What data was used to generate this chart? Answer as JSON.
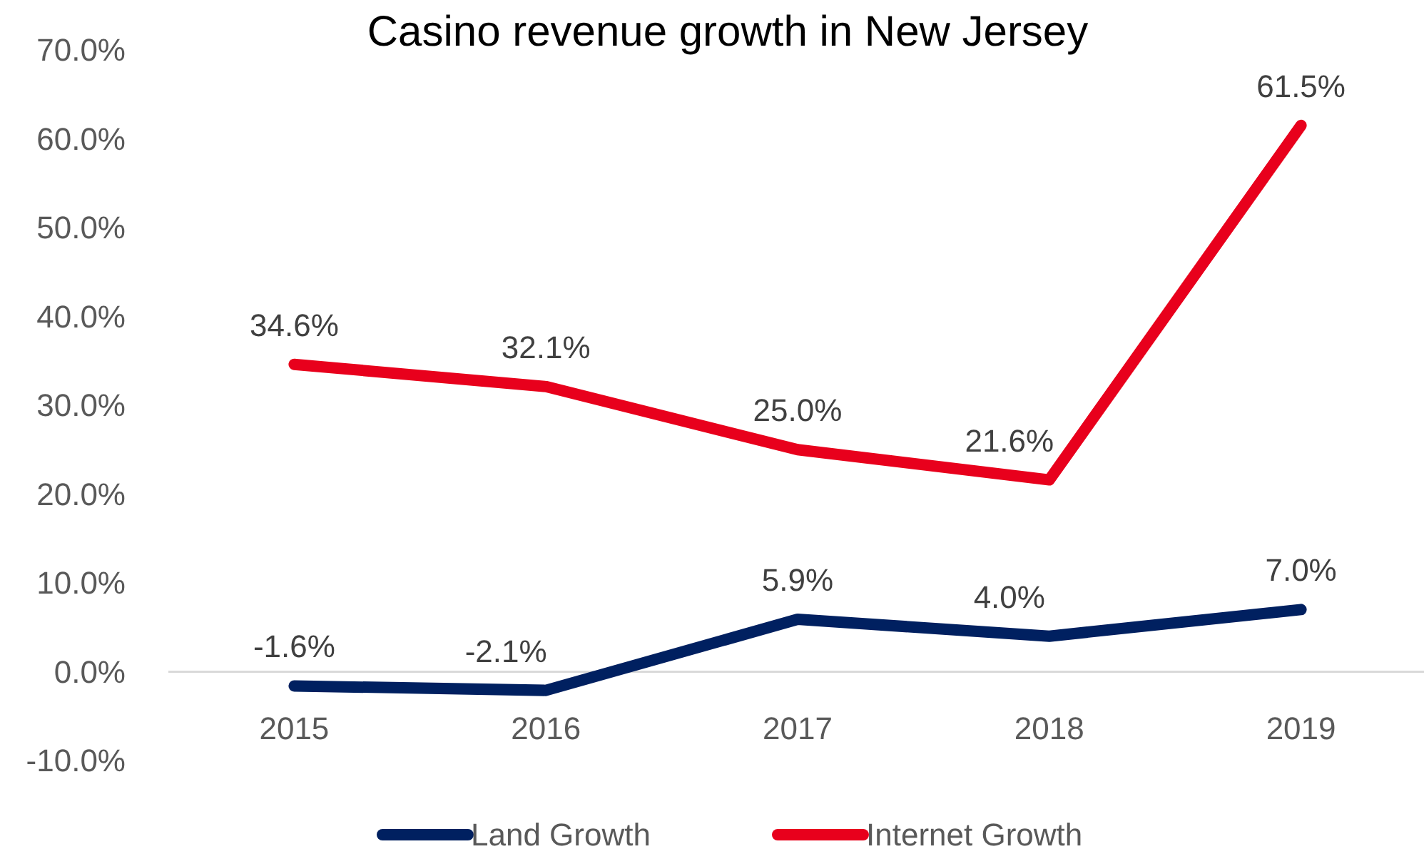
{
  "chart_data": {
    "type": "line",
    "title": "Casino revenue growth in New Jersey",
    "categories": [
      "2015",
      "2016",
      "2017",
      "2018",
      "2019"
    ],
    "series": [
      {
        "name": "Land Growth",
        "color": "#002060",
        "values": [
          -1.6,
          -2.1,
          5.9,
          4.0,
          7.0
        ],
        "value_labels": [
          "-1.6%",
          "-2.1%",
          "5.9%",
          "4.0%",
          "7.0%"
        ]
      },
      {
        "name": "Internet Growth",
        "color": "#e8001c",
        "values": [
          34.6,
          32.1,
          25.0,
          21.6,
          61.5
        ],
        "value_labels": [
          "34.6%",
          "32.1%",
          "25.0%",
          "21.6%",
          "61.5%"
        ]
      }
    ],
    "ylim": [
      -10,
      70
    ],
    "yticks": [
      {
        "value": -10,
        "label": "-10.0%"
      },
      {
        "value": 0,
        "label": "0.0%"
      },
      {
        "value": 10,
        "label": "10.0%"
      },
      {
        "value": 20,
        "label": "20.0%"
      },
      {
        "value": 30,
        "label": "30.0%"
      },
      {
        "value": 40,
        "label": "40.0%"
      },
      {
        "value": 50,
        "label": "50.0%"
      },
      {
        "value": 60,
        "label": "60.0%"
      },
      {
        "value": 70,
        "label": "70.0%"
      }
    ],
    "grid": false,
    "legend": "bottom",
    "marker": "none",
    "line_style": "solid"
  }
}
